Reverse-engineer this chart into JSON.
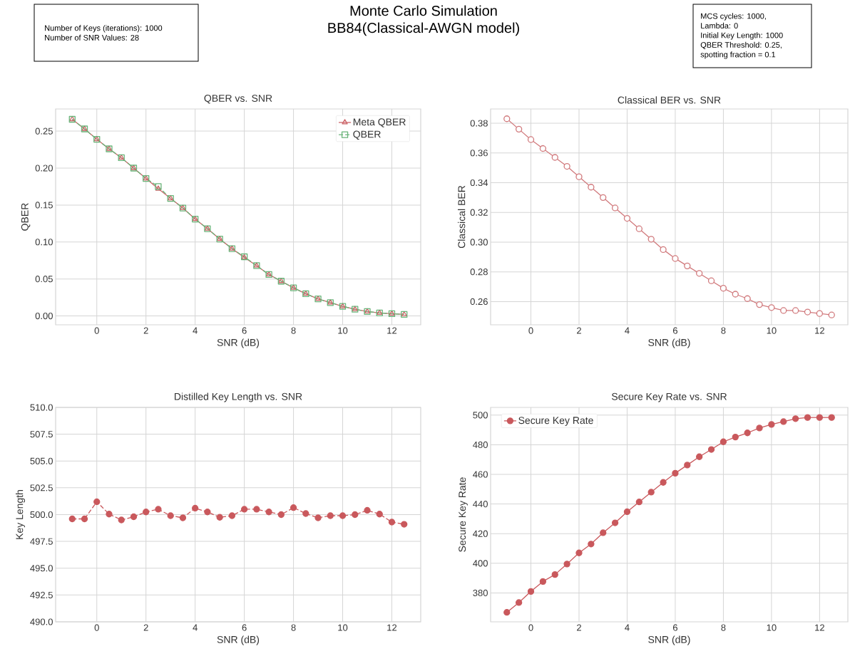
{
  "chart_data": [
    {
      "type": "other",
      "annotations": [
        "Number of Keys (iterations): 1000",
        "Number of SNR Values: 28"
      ]
    },
    {
      "type": "other",
      "title": "Monte Carlo Simulation",
      "subtitle": "BB84(Classical-AWGN model)"
    },
    {
      "type": "other",
      "annotations": [
        "MCS cycles: 1000,",
        "Lambda: 0",
        "Initial Key Length: 1000",
        "QBER Threshold: 0.25,",
        "spotting fraction = 0.1"
      ]
    },
    {
      "type": "line",
      "title": "QBER vs. SNR",
      "xlabel": "SNR (dB)",
      "ylabel": "QBER",
      "x": [
        -1,
        -0.5,
        0,
        0.5,
        1,
        1.5,
        2,
        2.5,
        3,
        3.5,
        4,
        4.5,
        5,
        5.5,
        6,
        6.5,
        7,
        7.5,
        8,
        8.5,
        9,
        9.5,
        10,
        10.5,
        11,
        11.5,
        12,
        12.5
      ],
      "series": [
        {
          "name": "Meta QBER",
          "color": "#cc6468",
          "marker": "triangle",
          "line_style": "solid",
          "values": [
            0.266,
            0.253,
            0.239,
            0.226,
            0.214,
            0.2,
            0.186,
            0.172,
            0.159,
            0.146,
            0.131,
            0.118,
            0.104,
            0.091,
            0.079,
            0.068,
            0.056,
            0.047,
            0.038,
            0.03,
            0.023,
            0.018,
            0.013,
            0.009,
            0.006,
            0.004,
            0.003,
            0.002
          ]
        },
        {
          "name": "QBER",
          "color": "#6ab47a",
          "marker": "square",
          "line_style": "dashed",
          "values": [
            0.266,
            0.253,
            0.239,
            0.226,
            0.214,
            0.2,
            0.186,
            0.175,
            0.159,
            0.146,
            0.131,
            0.118,
            0.104,
            0.091,
            0.08,
            0.068,
            0.056,
            0.047,
            0.038,
            0.03,
            0.023,
            0.018,
            0.013,
            0.009,
            0.006,
            0.004,
            0.003,
            0.002
          ]
        }
      ],
      "xlim": [
        -1.675,
        13.175
      ],
      "ylim": [
        -0.012,
        0.28
      ],
      "xticks": [
        0,
        2,
        4,
        6,
        8,
        10,
        12
      ],
      "yticks": [
        {
          "value": 0,
          "label": "0.00"
        },
        {
          "value": 0.05,
          "label": "0.05"
        },
        {
          "value": 0.1,
          "label": "0.10"
        },
        {
          "value": 0.15,
          "label": "0.15"
        },
        {
          "value": 0.2,
          "label": "0.20"
        },
        {
          "value": 0.25,
          "label": "0.25"
        }
      ],
      "grid": true,
      "legend": "top right"
    },
    {
      "type": "line",
      "title": "Classical BER vs. SNR",
      "xlabel": "SNR (dB)",
      "ylabel": "Classical BER",
      "x": [
        -1,
        -0.5,
        0,
        0.5,
        1,
        1.5,
        2,
        2.5,
        3,
        3.5,
        4,
        4.5,
        5,
        5.5,
        6,
        6.5,
        7,
        7.5,
        8,
        8.5,
        9,
        9.5,
        10,
        10.5,
        11,
        11.5,
        12,
        12.5
      ],
      "series": [
        {
          "color": "#d17a7d",
          "marker": "circle",
          "line_style": "solid",
          "values": [
            0.383,
            0.376,
            0.369,
            0.363,
            0.357,
            0.351,
            0.344,
            0.337,
            0.33,
            0.323,
            0.316,
            0.309,
            0.302,
            0.295,
            0.289,
            0.284,
            0.279,
            0.274,
            0.269,
            0.265,
            0.262,
            0.258,
            0.256,
            0.254,
            0.254,
            0.253,
            0.252,
            0.251
          ]
        }
      ],
      "xlim": [
        -1.675,
        13.175
      ],
      "ylim": [
        0.2444,
        0.3896
      ],
      "xticks": [
        0,
        2,
        4,
        6,
        8,
        10,
        12
      ],
      "yticks": [
        0.26,
        0.28,
        {
          "value": 0.3,
          "label": "0.30"
        },
        0.32,
        0.34,
        0.36,
        0.38
      ],
      "grid": true
    },
    {
      "type": "line",
      "title": "Distilled Key Length vs. SNR",
      "xlabel": "SNR (dB)",
      "ylabel": "Key Length",
      "x": [
        -1,
        -0.5,
        0,
        0.5,
        1,
        1.5,
        2,
        2.5,
        3,
        3.5,
        4,
        4.5,
        5,
        5.5,
        6,
        6.5,
        7,
        7.5,
        8,
        8.5,
        9,
        9.5,
        10,
        10.5,
        11,
        11.5,
        12,
        12.5
      ],
      "series": [
        {
          "color": "#c9585c",
          "marker": "circle",
          "line_style": "dashed",
          "values": [
            499.6,
            499.6,
            501.2,
            500.05,
            499.5,
            499.8,
            500.25,
            500.5,
            499.9,
            499.7,
            500.6,
            500.25,
            499.75,
            499.9,
            500.5,
            500.5,
            500.25,
            500.0,
            500.65,
            500.1,
            499.7,
            499.9,
            499.9,
            500.0,
            500.4,
            500.05,
            499.3,
            499.1
          ]
        }
      ],
      "xlim": [
        -1.675,
        13.175
      ],
      "ylim": [
        490,
        510
      ],
      "xticks": [
        0,
        2,
        4,
        6,
        8,
        10,
        12
      ],
      "yticks": [
        {
          "value": 490,
          "label": "490.0"
        },
        {
          "value": 492.5,
          "label": "492.5"
        },
        {
          "value": 495,
          "label": "495.0"
        },
        {
          "value": 497.5,
          "label": "497.5"
        },
        {
          "value": 500,
          "label": "500.0"
        },
        {
          "value": 502.5,
          "label": "502.5"
        },
        {
          "value": 505,
          "label": "505.0"
        },
        {
          "value": 507.5,
          "label": "507.5"
        },
        {
          "value": 510,
          "label": "510.0"
        }
      ],
      "grid": true
    },
    {
      "type": "line",
      "title": "Secure Key Rate vs. SNR",
      "xlabel": "SNR (dB)",
      "ylabel": "Secure Key Rate",
      "x": [
        -1,
        -0.5,
        0,
        0.5,
        1,
        1.5,
        2,
        2.5,
        3,
        3.5,
        4,
        4.5,
        5,
        5.5,
        6,
        6.5,
        7,
        7.5,
        8,
        8.5,
        9,
        9.5,
        10,
        10.5,
        11,
        11.5,
        12,
        12.5
      ],
      "series": [
        {
          "name": "Secure Key Rate",
          "color": "#c9585c",
          "marker": "circle",
          "line_style": "solid",
          "values": [
            366.9,
            373.5,
            381.0,
            387.7,
            392.4,
            399.5,
            407.0,
            413.0,
            420.6,
            427.3,
            434.8,
            441.4,
            448.0,
            454.6,
            460.8,
            466.3,
            471.9,
            476.8,
            482.0,
            485.2,
            488.0,
            491.3,
            493.7,
            495.6,
            497.6,
            498.4,
            498.4,
            498.4
          ]
        }
      ],
      "xlim": [
        -1.675,
        13.175
      ],
      "ylim": [
        360.5,
        505.2
      ],
      "xticks": [
        0,
        2,
        4,
        6,
        8,
        10,
        12
      ],
      "yticks": [
        380,
        400,
        420,
        440,
        460,
        480,
        500
      ],
      "grid": true,
      "legend": "top left"
    }
  ]
}
